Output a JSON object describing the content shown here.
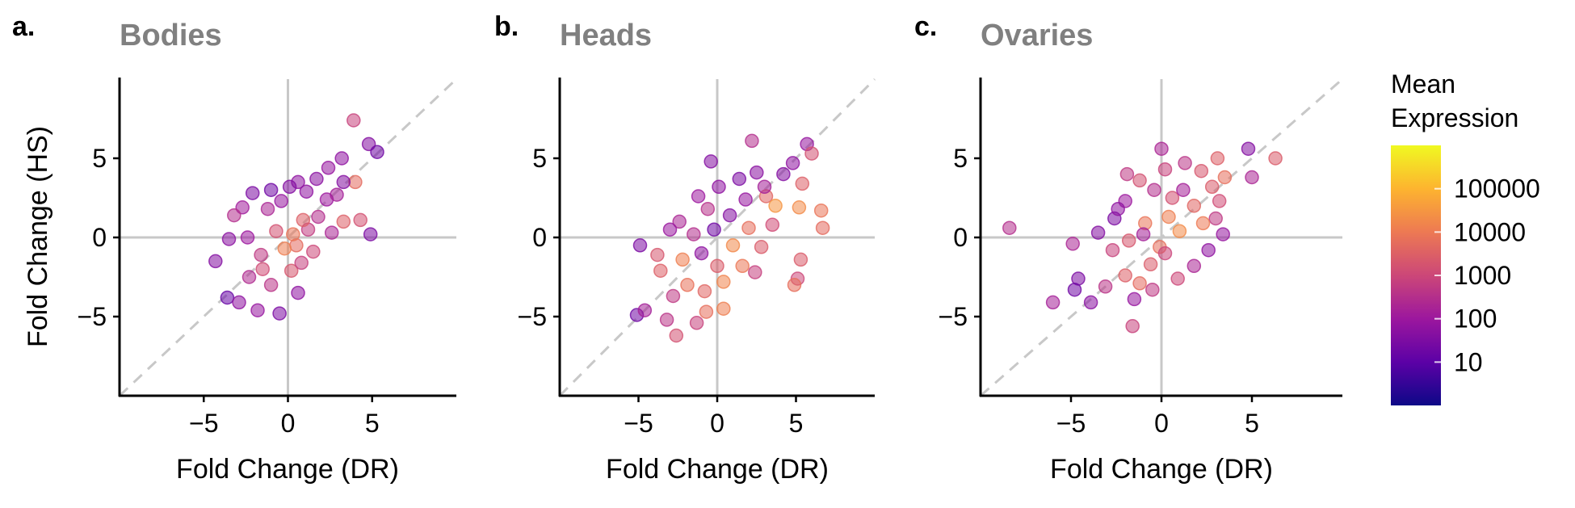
{
  "panels": [
    {
      "letter": "a.",
      "title": "Bodies",
      "xlabel": "Fold Change (DR)",
      "ylabel": "Fold Change (HS)",
      "show_ylabel": true
    },
    {
      "letter": "b.",
      "title": "Heads",
      "xlabel": "Fold Change (DR)",
      "ylabel": "",
      "show_ylabel": false
    },
    {
      "letter": "c.",
      "title": "Ovaries",
      "xlabel": "Fold Change (DR)",
      "ylabel": "",
      "show_ylabel": false
    }
  ],
  "colorbar": {
    "title_line1": "Mean",
    "title_line2": "Expression",
    "ticks": [
      "100000",
      "10000",
      "1000",
      "100",
      "10"
    ],
    "tick_values": [
      100000,
      10000,
      1000,
      100,
      10
    ],
    "range_log10": [
      0,
      6
    ],
    "colormap": "plasma",
    "colors": [
      "#0d0887",
      "#5c01a6",
      "#9c179e",
      "#cc4778",
      "#ed7953",
      "#fdb42f",
      "#f0f921"
    ]
  },
  "chart_data": [
    {
      "type": "scatter",
      "title": "Bodies",
      "xlabel": "Fold Change (DR)",
      "ylabel": "Fold Change (HS)",
      "xlim": [
        -10,
        10
      ],
      "ylim": [
        -10,
        10
      ],
      "xticks": [
        -5,
        0,
        5
      ],
      "yticks": [
        -5,
        0,
        5
      ],
      "reference_lines": [
        "x=0",
        "y=0",
        "y=x (dashed)"
      ],
      "color_by": "Mean Expression (log scale)",
      "points": [
        [
          4.8,
          5.9,
          40
        ],
        [
          5.3,
          5.4,
          20
        ],
        [
          3.9,
          7.4,
          800
        ],
        [
          3.2,
          5.0,
          60
        ],
        [
          4.9,
          0.2,
          30
        ],
        [
          4.3,
          1.1,
          1500
        ],
        [
          3.3,
          1.0,
          3000
        ],
        [
          4.0,
          3.5,
          5000
        ],
        [
          2.4,
          4.4,
          80
        ],
        [
          1.7,
          3.7,
          50
        ],
        [
          0.6,
          3.5,
          60
        ],
        [
          0.1,
          3.2,
          40
        ],
        [
          -1.0,
          3.0,
          20
        ],
        [
          -2.1,
          2.8,
          30
        ],
        [
          -2.7,
          1.9,
          120
        ],
        [
          -3.2,
          1.4,
          300
        ],
        [
          -3.5,
          -0.1,
          50
        ],
        [
          -4.3,
          -1.5,
          40
        ],
        [
          -3.6,
          -3.8,
          15
        ],
        [
          -2.9,
          -4.1,
          60
        ],
        [
          -1.8,
          -4.6,
          80
        ],
        [
          -0.5,
          -4.8,
          30
        ],
        [
          0.6,
          -3.5,
          60
        ],
        [
          0.2,
          -2.1,
          2000
        ],
        [
          0.5,
          -0.5,
          5000
        ],
        [
          -0.2,
          -0.7,
          12000
        ],
        [
          0.3,
          0.2,
          8000
        ],
        [
          -0.7,
          0.4,
          1500
        ],
        [
          1.2,
          0.5,
          600
        ],
        [
          1.8,
          1.3,
          300
        ],
        [
          -1.6,
          -1.1,
          500
        ],
        [
          -1.2,
          1.8,
          200
        ],
        [
          2.3,
          2.4,
          100
        ],
        [
          3.3,
          3.5,
          40
        ],
        [
          2.9,
          2.7,
          150
        ],
        [
          -2.3,
          -2.5,
          250
        ],
        [
          -1.0,
          -3.0,
          400
        ],
        [
          1.5,
          -0.9,
          1000
        ],
        [
          0.9,
          1.1,
          3000
        ],
        [
          -0.4,
          2.3,
          80
        ],
        [
          2.6,
          0.3,
          200
        ],
        [
          -2.4,
          0.0,
          100
        ],
        [
          1.1,
          2.9,
          60
        ],
        [
          -1.5,
          -2.0,
          1200
        ],
        [
          0.8,
          -1.6,
          700
        ]
      ]
    },
    {
      "type": "scatter",
      "title": "Heads",
      "xlabel": "Fold Change (DR)",
      "ylabel": "",
      "xlim": [
        -10,
        10
      ],
      "ylim": [
        -10,
        10
      ],
      "xticks": [
        -5,
        0,
        5
      ],
      "yticks": [
        -5,
        0,
        5
      ],
      "reference_lines": [
        "x=0",
        "y=0",
        "y=x (dashed)"
      ],
      "color_by": "Mean Expression (log scale)",
      "points": [
        [
          2.2,
          6.1,
          300
        ],
        [
          5.7,
          5.9,
          80
        ],
        [
          6.0,
          5.3,
          1500
        ],
        [
          -0.4,
          4.8,
          40
        ],
        [
          4.8,
          4.7,
          60
        ],
        [
          5.4,
          3.4,
          3000
        ],
        [
          5.2,
          1.9,
          20000
        ],
        [
          6.6,
          1.7,
          8000
        ],
        [
          6.7,
          0.6,
          5000
        ],
        [
          5.3,
          -1.4,
          2500
        ],
        [
          5.1,
          -2.6,
          1000
        ],
        [
          4.9,
          -3.0,
          6000
        ],
        [
          -4.9,
          -0.5,
          30
        ],
        [
          -5.1,
          -4.9,
          20
        ],
        [
          -4.6,
          -4.6,
          150
        ],
        [
          -3.2,
          -5.2,
          400
        ],
        [
          -2.6,
          -6.2,
          1500
        ],
        [
          -1.3,
          -5.4,
          800
        ],
        [
          -0.7,
          -4.7,
          6000
        ],
        [
          0.4,
          -4.5,
          12000
        ],
        [
          -3.6,
          -2.1,
          3000
        ],
        [
          -3.8,
          -1.1,
          2000
        ],
        [
          -2.4,
          1.0,
          200
        ],
        [
          -1.2,
          2.6,
          100
        ],
        [
          0.1,
          3.2,
          60
        ],
        [
          1.4,
          3.7,
          30
        ],
        [
          2.5,
          4.1,
          50
        ],
        [
          3.1,
          2.6,
          4000
        ],
        [
          3.7,
          2.0,
          30000
        ],
        [
          3.5,
          0.8,
          1200
        ],
        [
          2.8,
          -0.6,
          2500
        ],
        [
          1.6,
          -1.8,
          9000
        ],
        [
          0.4,
          -2.8,
          15000
        ],
        [
          -0.8,
          -3.4,
          4000
        ],
        [
          -1.9,
          -3.0,
          7000
        ],
        [
          -2.8,
          -3.7,
          500
        ],
        [
          -1.0,
          -1.0,
          60
        ],
        [
          -0.2,
          0.5,
          20
        ],
        [
          0.8,
          1.4,
          40
        ],
        [
          1.8,
          2.4,
          80
        ],
        [
          -2.2,
          -1.4,
          12000
        ],
        [
          1.0,
          -0.5,
          18000
        ],
        [
          2.0,
          0.6,
          6000
        ],
        [
          -1.5,
          0.2,
          300
        ],
        [
          3.0,
          3.2,
          150
        ],
        [
          4.2,
          4.0,
          40
        ],
        [
          -3.0,
          0.5,
          90
        ],
        [
          0.0,
          -1.8,
          2500
        ],
        [
          2.4,
          -2.2,
          700
        ],
        [
          -0.6,
          1.8,
          350
        ]
      ]
    },
    {
      "type": "scatter",
      "title": "Ovaries",
      "xlabel": "Fold Change (DR)",
      "ylabel": "",
      "xlim": [
        -10,
        10
      ],
      "ylim": [
        -10,
        10
      ],
      "xticks": [
        -5,
        0,
        5
      ],
      "yticks": [
        -5,
        0,
        5
      ],
      "reference_lines": [
        "x=0",
        "y=0",
        "y=x (dashed)"
      ],
      "color_by": "Mean Expression (log scale)",
      "points": [
        [
          -8.4,
          0.6,
          300
        ],
        [
          -6.0,
          -4.1,
          150
        ],
        [
          -4.9,
          -0.4,
          200
        ],
        [
          -4.6,
          -2.6,
          30
        ],
        [
          -4.8,
          -3.3,
          20
        ],
        [
          -3.9,
          -4.1,
          50
        ],
        [
          -3.1,
          -3.1,
          400
        ],
        [
          -3.5,
          0.3,
          40
        ],
        [
          -2.6,
          1.2,
          30
        ],
        [
          -2.0,
          2.3,
          100
        ],
        [
          -1.9,
          4.0,
          500
        ],
        [
          -1.2,
          3.6,
          1500
        ],
        [
          0.0,
          5.6,
          200
        ],
        [
          0.2,
          4.3,
          800
        ],
        [
          1.3,
          4.7,
          400
        ],
        [
          2.2,
          4.2,
          2000
        ],
        [
          3.1,
          5.0,
          3000
        ],
        [
          4.8,
          5.6,
          40
        ],
        [
          5.0,
          3.8,
          200
        ],
        [
          6.3,
          5.0,
          2500
        ],
        [
          3.5,
          3.8,
          6000
        ],
        [
          3.2,
          2.3,
          1200
        ],
        [
          3.0,
          1.2,
          500
        ],
        [
          3.4,
          0.2,
          80
        ],
        [
          2.6,
          -0.8,
          60
        ],
        [
          1.8,
          -1.8,
          200
        ],
        [
          0.9,
          -2.6,
          1000
        ],
        [
          -0.5,
          -3.3,
          500
        ],
        [
          -1.5,
          -3.9,
          80
        ],
        [
          -1.2,
          -2.9,
          5000
        ],
        [
          -1.6,
          -5.6,
          800
        ],
        [
          -2.0,
          -2.4,
          3000
        ],
        [
          -2.7,
          -0.8,
          800
        ],
        [
          -1.8,
          -0.2,
          2000
        ],
        [
          -0.9,
          0.9,
          8000
        ],
        [
          0.4,
          1.3,
          12000
        ],
        [
          1.0,
          0.4,
          20000
        ],
        [
          -0.1,
          -0.6,
          6000
        ],
        [
          0.6,
          2.5,
          1500
        ],
        [
          1.8,
          2.0,
          4000
        ],
        [
          2.3,
          0.9,
          10000
        ],
        [
          -0.6,
          -1.7,
          2500
        ],
        [
          0.2,
          -1.0,
          900
        ],
        [
          1.2,
          3.0,
          150
        ],
        [
          -2.4,
          1.8,
          60
        ],
        [
          -0.4,
          3.0,
          300
        ],
        [
          2.8,
          3.2,
          2500
        ],
        [
          -1.0,
          0.2,
          150
        ]
      ]
    }
  ]
}
